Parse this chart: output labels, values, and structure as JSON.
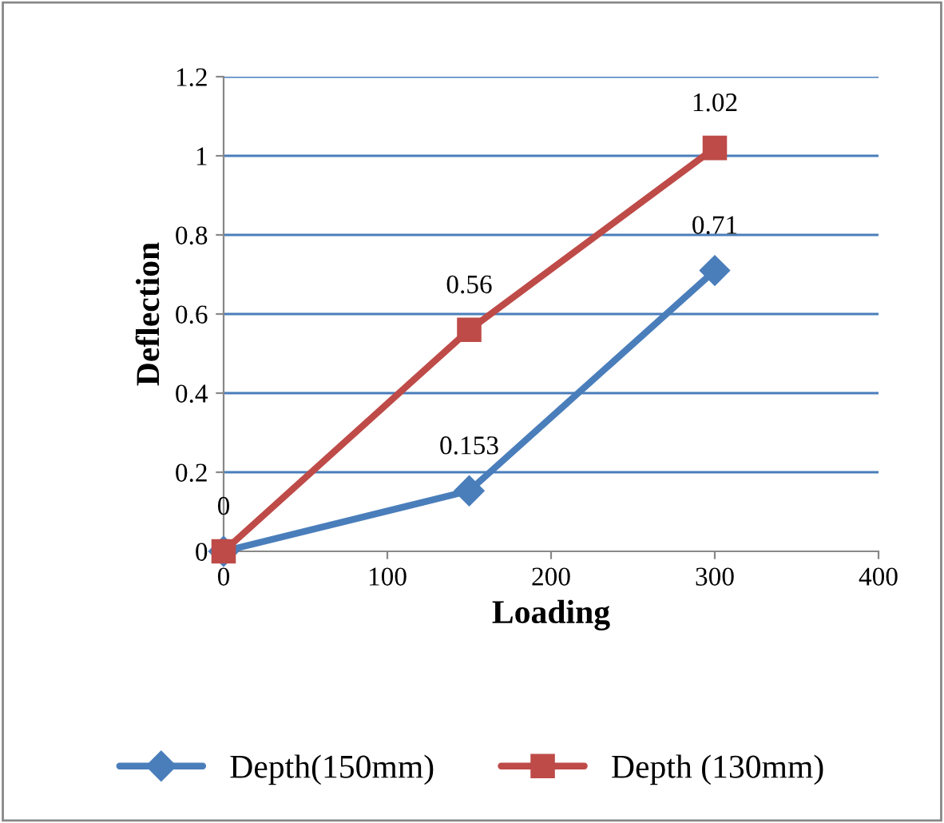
{
  "chart_data": {
    "type": "line",
    "xlabel": "Loading",
    "ylabel": "Deflection",
    "x": [
      0,
      150,
      300
    ],
    "series": [
      {
        "name": "Depth(150mm)",
        "color": "#4a7ebb",
        "marker": "diamond",
        "values": [
          0,
          0.153,
          0.71
        ],
        "value_labels": [
          null,
          "0.153",
          "0.71"
        ]
      },
      {
        "name": "Depth (130mm)",
        "color": "#be4b48",
        "marker": "square",
        "values": [
          0,
          0.56,
          1.02
        ],
        "value_labels": [
          "0",
          "0.56",
          "1.02"
        ]
      }
    ],
    "xlim": [
      0,
      400
    ],
    "xticks": [
      0,
      100,
      200,
      300,
      400
    ],
    "ylim": [
      0,
      1.2
    ],
    "yticks": [
      0,
      0.2,
      0.4,
      0.6,
      0.8,
      1,
      1.2
    ],
    "grid": "y",
    "legend": "bottom",
    "line_style": "solid"
  }
}
